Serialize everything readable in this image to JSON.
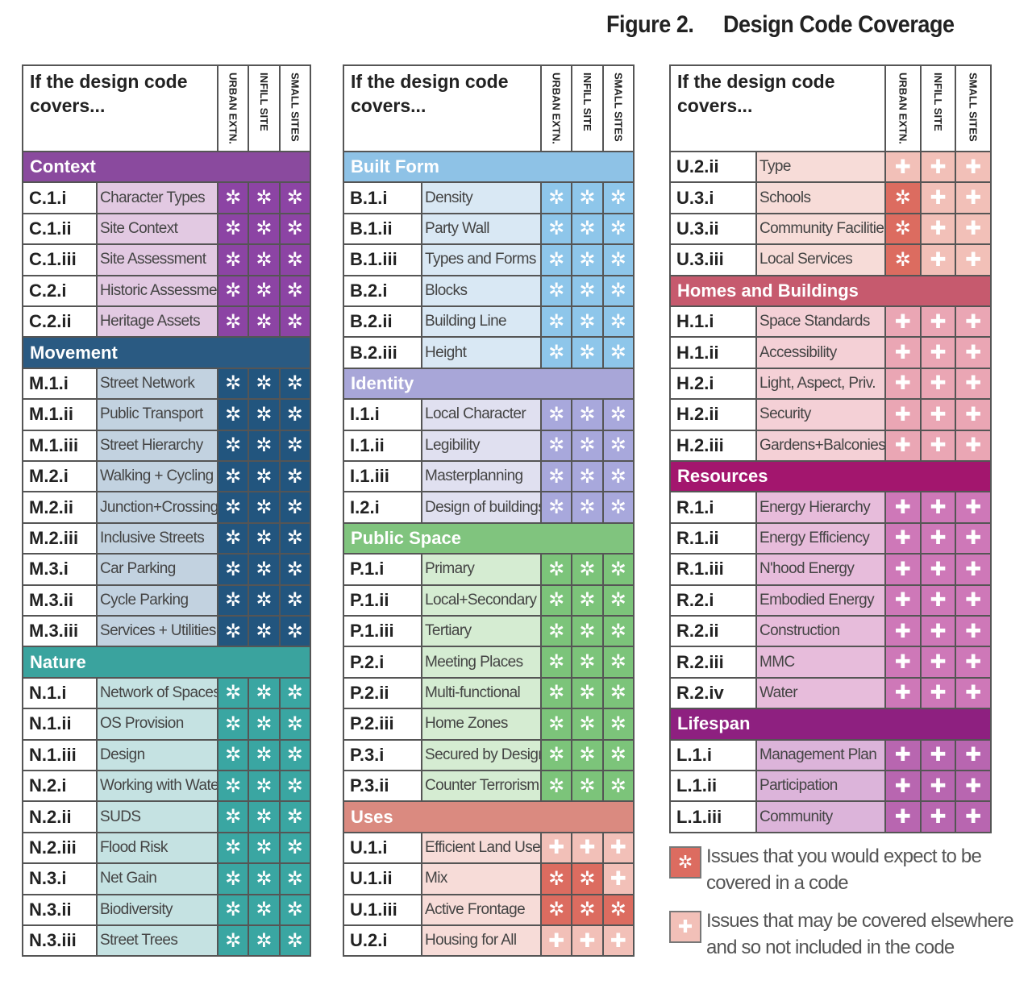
{
  "title": {
    "figure": "Figure 2.",
    "text": "Design Code Coverage"
  },
  "columns": [
    {
      "header": "If the design code covers...",
      "subheaders": [
        "URBAN EXTN.",
        "INFILL SITE",
        "SMALL SITES"
      ],
      "sections": [
        {
          "name": "Context",
          "colors": {
            "header": "#8a4a9e",
            "label": "#e2c9e2",
            "cells": {
              "✲": "#8c44a4"
            }
          },
          "rows": [
            {
              "code": "C.1.i",
              "label": "Character Types",
              "cells": [
                "✲",
                "✲",
                "✲"
              ]
            },
            {
              "code": "C.1.ii",
              "label": "Site Context",
              "cells": [
                "✲",
                "✲",
                "✲"
              ]
            },
            {
              "code": "C.1.iii",
              "label": "Site Assessment",
              "cells": [
                "✲",
                "✲",
                "✲"
              ]
            },
            {
              "code": "C.2.i",
              "label": "Historic Assessment",
              "cells": [
                "✲",
                "✲",
                "✲"
              ]
            },
            {
              "code": "C.2.ii",
              "label": "Heritage Assets",
              "cells": [
                "✲",
                "✲",
                "✲"
              ]
            }
          ]
        },
        {
          "name": "Movement",
          "colors": {
            "header": "#2a5a82",
            "label": "#c2d2e0",
            "cells": {
              "✲": "#22557e"
            }
          },
          "rows": [
            {
              "code": "M.1.i",
              "label": "Street Network",
              "cells": [
                "✲",
                "✲",
                "✲"
              ]
            },
            {
              "code": "M.1.ii",
              "label": "Public Transport",
              "cells": [
                "✲",
                "✲",
                "✲"
              ]
            },
            {
              "code": "M.1.iii",
              "label": "Street Hierarchy",
              "cells": [
                "✲",
                "✲",
                "✲"
              ]
            },
            {
              "code": "M.2.i",
              "label": "Walking + Cycling",
              "cells": [
                "✲",
                "✲",
                "✲"
              ]
            },
            {
              "code": "M.2.ii",
              "label": "Junction+Crossings",
              "cells": [
                "✲",
                "✲",
                "✲"
              ]
            },
            {
              "code": "M.2.iii",
              "label": "Inclusive Streets",
              "cells": [
                "✲",
                "✲",
                "✲"
              ]
            },
            {
              "code": "M.3.i",
              "label": "Car Parking",
              "cells": [
                "✲",
                "✲",
                "✲"
              ]
            },
            {
              "code": "M.3.ii",
              "label": "Cycle Parking",
              "cells": [
                "✲",
                "✲",
                "✲"
              ]
            },
            {
              "code": "M.3.iii",
              "label": "Services + Utilities",
              "cells": [
                "✲",
                "✲",
                "✲"
              ]
            }
          ]
        },
        {
          "name": "Nature",
          "colors": {
            "header": "#3aa39e",
            "label": "#c5e2e2",
            "cells": {
              "✲": "#3aa6a2"
            }
          },
          "rows": [
            {
              "code": "N.1.i",
              "label": "Network of Spaces",
              "cells": [
                "✲",
                "✲",
                "✲"
              ]
            },
            {
              "code": "N.1.ii",
              "label": "OS Provision",
              "cells": [
                "✲",
                "✲",
                "✲"
              ]
            },
            {
              "code": "N.1.iii",
              "label": "Design",
              "cells": [
                "✲",
                "✲",
                "✲"
              ]
            },
            {
              "code": "N.2.i",
              "label": "Working with Water",
              "cells": [
                "✲",
                "✲",
                "✲"
              ]
            },
            {
              "code": "N.2.ii",
              "label": "SUDS",
              "cells": [
                "✲",
                "✲",
                "✲"
              ]
            },
            {
              "code": "N.2.iii",
              "label": "Flood Risk",
              "cells": [
                "✲",
                "✲",
                "✲"
              ]
            },
            {
              "code": "N.3.i",
              "label": "Net Gain",
              "cells": [
                "✲",
                "✲",
                "✲"
              ]
            },
            {
              "code": "N.3.ii",
              "label": "Biodiversity",
              "cells": [
                "✲",
                "✲",
                "✲"
              ]
            },
            {
              "code": "N.3.iii",
              "label": "Street Trees",
              "cells": [
                "✲",
                "✲",
                "✲"
              ]
            }
          ]
        }
      ]
    },
    {
      "header": "If the design code covers...",
      "subheaders": [
        "URBAN EXTN.",
        "INFILL SITE",
        "SMALL SITES"
      ],
      "sections": [
        {
          "name": "Built Form",
          "colors": {
            "header": "#8ec2e6",
            "label": "#d9e8f4",
            "cells": {
              "✲": "#8ec6ea"
            }
          },
          "rows": [
            {
              "code": "B.1.i",
              "label": "Density",
              "cells": [
                "✲",
                "✲",
                "✲"
              ]
            },
            {
              "code": "B.1.ii",
              "label": "Party Wall",
              "cells": [
                "✲",
                "✲",
                "✲"
              ]
            },
            {
              "code": "B.1.iii",
              "label": "Types and Forms",
              "cells": [
                "✲",
                "✲",
                "✲"
              ]
            },
            {
              "code": "B.2.i",
              "label": "Blocks",
              "cells": [
                "✲",
                "✲",
                "✲"
              ]
            },
            {
              "code": "B.2.ii",
              "label": "Building Line",
              "cells": [
                "✲",
                "✲",
                "✲"
              ]
            },
            {
              "code": "B.2.iii",
              "label": "Height",
              "cells": [
                "✲",
                "✲",
                "✲"
              ]
            }
          ]
        },
        {
          "name": "Identity",
          "colors": {
            "header": "#a8a6d8",
            "label": "#e0e0f0",
            "cells": {
              "✲": "#a8a8dc"
            }
          },
          "rows": [
            {
              "code": "I.1.i",
              "label": "Local Character",
              "cells": [
                "✲",
                "✲",
                "✲"
              ]
            },
            {
              "code": "I.1.ii",
              "label": "Legibility",
              "cells": [
                "✲",
                "✲",
                "✲"
              ]
            },
            {
              "code": "I.1.iii",
              "label": "Masterplanning",
              "cells": [
                "✲",
                "✲",
                "✲"
              ]
            },
            {
              "code": "I.2.i",
              "label": "Design of buildings",
              "cells": [
                "✲",
                "✲",
                "✲"
              ]
            }
          ]
        },
        {
          "name": "Public Space",
          "colors": {
            "header": "#80c47e",
            "label": "#d5ecd2",
            "cells": {
              "✲": "#7cc47a"
            }
          },
          "rows": [
            {
              "code": "P.1.i",
              "label": "Primary",
              "cells": [
                "✲",
                "✲",
                "✲"
              ]
            },
            {
              "code": "P.1.ii",
              "label": "Local+Secondary",
              "cells": [
                "✲",
                "✲",
                "✲"
              ]
            },
            {
              "code": "P.1.iii",
              "label": "Tertiary",
              "cells": [
                "✲",
                "✲",
                "✲"
              ]
            },
            {
              "code": "P.2.i",
              "label": "Meeting Places",
              "cells": [
                "✲",
                "✲",
                "✲"
              ]
            },
            {
              "code": "P.2.ii",
              "label": "Multi-functional",
              "cells": [
                "✲",
                "✲",
                "✲"
              ]
            },
            {
              "code": "P.2.iii",
              "label": "Home Zones",
              "cells": [
                "✲",
                "✲",
                "✲"
              ]
            },
            {
              "code": "P.3.i",
              "label": "Secured by Design",
              "cells": [
                "✲",
                "✲",
                "✲"
              ]
            },
            {
              "code": "P.3.ii",
              "label": "Counter Terrorism",
              "cells": [
                "✲",
                "✲",
                "✲"
              ]
            }
          ]
        },
        {
          "name": "Uses",
          "colors": {
            "header": "#da8a80",
            "label": "#f7dcd8",
            "cells": {
              "✲": "#dc6c60",
              "✚": "#f2c0b8"
            }
          },
          "rows": [
            {
              "code": "U.1.i",
              "label": "Efficient Land Use",
              "cells": [
                "✚",
                "✚",
                "✚"
              ]
            },
            {
              "code": "U.1.ii",
              "label": "Mix",
              "cells": [
                "✲",
                "✲",
                "✚"
              ]
            },
            {
              "code": "U.1.iii",
              "label": "Active Frontage",
              "cells": [
                "✲",
                "✲",
                "✲"
              ]
            },
            {
              "code": "U.2.i",
              "label": "Housing for All",
              "cells": [
                "✚",
                "✚",
                "✚"
              ]
            }
          ]
        }
      ]
    },
    {
      "header": "If the design code covers...",
      "subheaders": [
        "URBAN EXTN.",
        "INFILL SITE",
        "SMALL SITES"
      ],
      "sections": [
        {
          "colors": {
            "header": "#da8a80",
            "label": "#f7dcd8",
            "cells": {
              "✲": "#dc6c60",
              "✚": "#f2c0b8"
            }
          },
          "rows": [
            {
              "code": "U.2.ii",
              "label": "Type",
              "cells": [
                "✚",
                "✚",
                "✚"
              ]
            },
            {
              "code": "U.3.i",
              "label": "Schools",
              "cells": [
                "✲",
                "✚",
                "✚"
              ]
            },
            {
              "code": "U.3.ii",
              "label": "Community Facilities",
              "cells": [
                "✲",
                "✚",
                "✚"
              ]
            },
            {
              "code": "U.3.iii",
              "label": "Local Services",
              "cells": [
                "✲",
                "✚",
                "✚"
              ]
            }
          ]
        },
        {
          "name": "Homes and Buildings",
          "colors": {
            "header": "#c65a6e",
            "label": "#f4d0d6",
            "cells": {
              "✚": "#eaa6b4"
            }
          },
          "rows": [
            {
              "code": "H.1.i",
              "label": "Space Standards",
              "cells": [
                "✚",
                "✚",
                "✚"
              ]
            },
            {
              "code": "H.1.ii",
              "label": "Accessibility",
              "cells": [
                "✚",
                "✚",
                "✚"
              ]
            },
            {
              "code": "H.2.i",
              "label": "Light, Aspect, Priv.",
              "cells": [
                "✚",
                "✚",
                "✚"
              ]
            },
            {
              "code": "H.2.ii",
              "label": "Security",
              "cells": [
                "✚",
                "✚",
                "✚"
              ]
            },
            {
              "code": "H.2.iii",
              "label": "Gardens+Balconies",
              "cells": [
                "✚",
                "✚",
                "✚"
              ]
            }
          ]
        },
        {
          "name": "Resources",
          "colors": {
            "header": "#a3166e",
            "label": "#e7bcdb",
            "cells": {
              "✚": "#ce78b8"
            }
          },
          "rows": [
            {
              "code": "R.1.i",
              "label": "Energy Hierarchy",
              "cells": [
                "✚",
                "✚",
                "✚"
              ]
            },
            {
              "code": "R.1.ii",
              "label": "Energy Efficiency",
              "cells": [
                "✚",
                "✚",
                "✚"
              ]
            },
            {
              "code": "R.1.iii",
              "label": "N'hood Energy",
              "cells": [
                "✚",
                "✚",
                "✚"
              ]
            },
            {
              "code": "R.2.i",
              "label": "Embodied Energy",
              "cells": [
                "✚",
                "✚",
                "✚"
              ]
            },
            {
              "code": "R.2.ii",
              "label": "Construction",
              "cells": [
                "✚",
                "✚",
                "✚"
              ]
            },
            {
              "code": "R.2.iii",
              "label": "MMC",
              "cells": [
                "✚",
                "✚",
                "✚"
              ]
            },
            {
              "code": "R.2.iv",
              "label": "Water",
              "cells": [
                "✚",
                "✚",
                "✚"
              ]
            }
          ]
        },
        {
          "name": "Lifespan",
          "colors": {
            "header": "#8e2080",
            "label": "#dcb4da",
            "cells": {
              "✚": "#b866b0"
            }
          },
          "rows": [
            {
              "code": "L.1.i",
              "label": "Management Plan",
              "cells": [
                "✚",
                "✚",
                "✚"
              ]
            },
            {
              "code": "L.1.ii",
              "label": "Participation",
              "cells": [
                "✚",
                "✚",
                "✚"
              ]
            },
            {
              "code": "L.1.iii",
              "label": "Community",
              "cells": [
                "✚",
                "✚",
                "✚"
              ]
            }
          ]
        }
      ]
    }
  ],
  "legend": [
    {
      "symbol": "✲",
      "color": "#dc6c60",
      "lines": [
        "Issues that you would expect to be",
        "covered in a code"
      ]
    },
    {
      "symbol": "✚",
      "color": "#f2c0b8",
      "lines": [
        "Issues that may be covered elsewhere",
        "and so not included in the code"
      ]
    }
  ]
}
